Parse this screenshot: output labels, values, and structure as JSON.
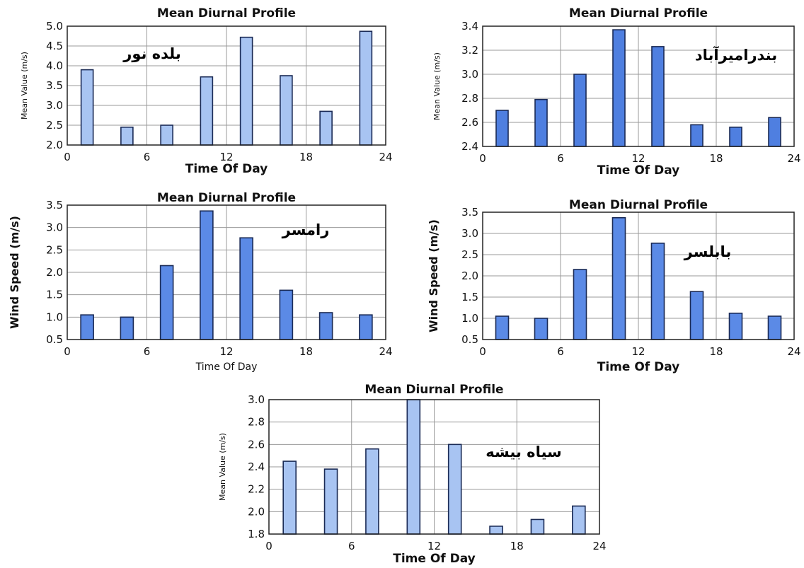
{
  "chart_data": [
    {
      "type": "bar",
      "title": "Mean Diurnal Profile",
      "station_label": "بلده نور",
      "xlabel": "Time Of Day",
      "ylabel": "Mean Value (m/s)",
      "xlim": [
        0,
        24
      ],
      "xticks": [
        "0",
        "6",
        "12",
        "18",
        "24"
      ],
      "ylim": [
        2.0,
        5.0
      ],
      "yticks": [
        "2.0",
        "2.5",
        "3.0",
        "3.5",
        "4.0",
        "4.5",
        "5.0"
      ],
      "bar_color": "#a8c4f2",
      "x": [
        1.5,
        4.5,
        7.5,
        10.5,
        13.5,
        16.5,
        19.5,
        22.5
      ],
      "values": [
        3.9,
        2.45,
        2.5,
        3.72,
        4.72,
        3.75,
        2.85,
        4.87
      ]
    },
    {
      "type": "bar",
      "title": "Mean Diurnal Profile",
      "station_label": "بندرامیرآباد",
      "xlabel": "Time Of Day",
      "ylabel": "Mean Value (m/s)",
      "xlim": [
        0,
        24
      ],
      "xticks": [
        "0",
        "6",
        "12",
        "18",
        "24"
      ],
      "ylim": [
        2.4,
        3.4
      ],
      "yticks": [
        "2.4",
        "2.6",
        "2.8",
        "3.0",
        "3.2",
        "3.4"
      ],
      "bar_color": "#4f7fe0",
      "x": [
        1.5,
        4.5,
        7.5,
        10.5,
        13.5,
        16.5,
        19.5,
        22.5
      ],
      "values": [
        2.7,
        2.79,
        3.0,
        3.37,
        3.23,
        2.58,
        2.56,
        2.64
      ]
    },
    {
      "type": "bar",
      "title": "Mean Diurnal Profile",
      "station_label": "رامسر",
      "xlabel": "Time Of Day",
      "ylabel": "Wind Speed (m/s)",
      "xlim": [
        0,
        24
      ],
      "xticks": [
        "0",
        "6",
        "12",
        "18",
        "24"
      ],
      "ylim": [
        0.5,
        3.5
      ],
      "yticks": [
        "0.5",
        "1.0",
        "1.5",
        "2.0",
        "2.5",
        "3.0",
        "3.5"
      ],
      "bar_color": "#5b8ae6",
      "x": [
        1.5,
        4.5,
        7.5,
        10.5,
        13.5,
        16.5,
        19.5,
        22.5
      ],
      "values": [
        1.05,
        1.0,
        2.15,
        3.37,
        2.77,
        1.6,
        1.1,
        1.05
      ]
    },
    {
      "type": "bar",
      "title": "Mean Diurnal Profile",
      "station_label": "بابلسر",
      "xlabel": "Time Of Day",
      "ylabel": "Wind Speed (m/s)",
      "xlim": [
        0,
        24
      ],
      "xticks": [
        "0",
        "6",
        "12",
        "18",
        "24"
      ],
      "ylim": [
        0.5,
        3.5
      ],
      "yticks": [
        "0.5",
        "1.0",
        "1.5",
        "2.0",
        "2.5",
        "3.0",
        "3.5"
      ],
      "bar_color": "#5b8ae6",
      "x": [
        1.5,
        4.5,
        7.5,
        10.5,
        13.5,
        16.5,
        19.5,
        22.5
      ],
      "values": [
        1.05,
        1.0,
        2.15,
        3.37,
        2.77,
        1.63,
        1.12,
        1.05
      ]
    },
    {
      "type": "bar",
      "title": "Mean Diurnal Profile",
      "station_label": "سیاه بیشه",
      "xlabel": "Time Of Day",
      "ylabel": "Mean Value (m/s)",
      "xlim": [
        0,
        24
      ],
      "xticks": [
        "0",
        "6",
        "12",
        "18",
        "24"
      ],
      "ylim": [
        1.8,
        3.0
      ],
      "yticks": [
        "1.8",
        "2.0",
        "2.2",
        "2.4",
        "2.6",
        "2.8",
        "3.0"
      ],
      "bar_color": "#a8c4f2",
      "x": [
        1.5,
        4.5,
        7.5,
        10.5,
        13.5,
        16.5,
        19.5,
        22.5
      ],
      "values": [
        2.45,
        2.38,
        2.56,
        3.0,
        2.6,
        1.87,
        1.93,
        2.05
      ]
    }
  ]
}
